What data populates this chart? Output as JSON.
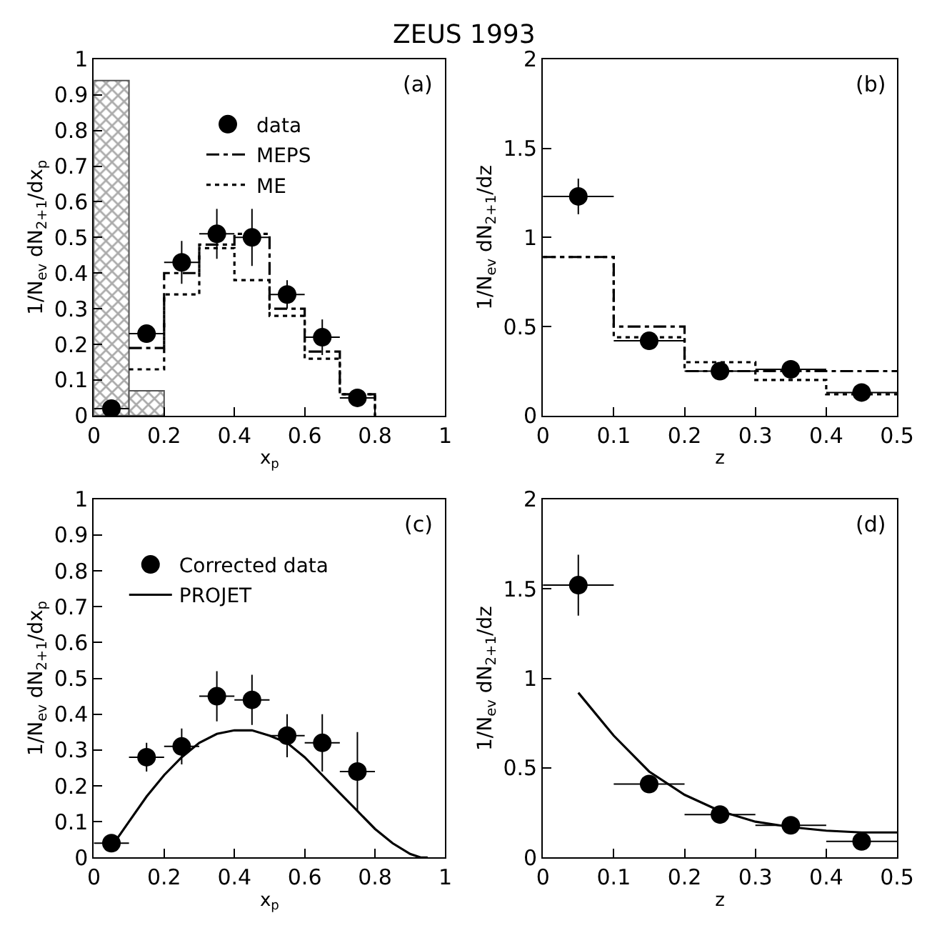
{
  "chart_data": [
    {
      "type": "scatter",
      "title": "ZEUS 1993",
      "xlabel": "x$_{p}$",
      "ylabel": "1/N$_{ev}$ dN$_{2+1}$/dx$_{p}$",
      "annotations": [
        "(a)"
      ],
      "xlim": [
        0,
        1
      ],
      "xticks": [
        0,
        0.2,
        0.4,
        0.6,
        0.8,
        1
      ],
      "ylim": [
        0,
        1
      ],
      "yticks": [
        0,
        0.1,
        0.2,
        0.3,
        0.4,
        0.5,
        0.6,
        0.7,
        0.8,
        0.9,
        1
      ],
      "grid": false,
      "legend": "top",
      "series": [
        {
          "type": "bar",
          "color": "#555555",
          "x": [
            0.05,
            0.15
          ],
          "values": [
            0.94,
            0.07
          ]
        },
        {
          "name": "data",
          "color": "#000000",
          "marker": "circle",
          "x": [
            0.05,
            0.15,
            0.25,
            0.35,
            0.45,
            0.55,
            0.65,
            0.75
          ],
          "values": [
            0.02,
            0.23,
            0.43,
            0.51,
            0.5,
            0.34,
            0.22,
            0.05
          ],
          "errors": [
            0.02,
            0.02,
            0.06,
            0.07,
            0.08,
            0.04,
            0.05,
            0.01
          ],
          "xerrors": [
            0.05,
            0.05,
            0.05,
            0.05,
            0.05,
            0.05,
            0.05,
            0.05
          ]
        },
        {
          "type": "step",
          "name": "MEPS",
          "color": "#000000",
          "line_style": "dashed",
          "x": [
            0.1,
            0.2,
            0.3,
            0.4,
            0.5,
            0.6,
            0.7,
            0.8
          ],
          "values": [
            0.19,
            0.4,
            0.48,
            0.51,
            0.3,
            0.18,
            0.06,
            0
          ]
        },
        {
          "type": "step",
          "name": "ME",
          "color": "#000000",
          "line_style": "dotted",
          "x": [
            0.1,
            0.2,
            0.3,
            0.4,
            0.5,
            0.6,
            0.7,
            0.8
          ],
          "values": [
            0.13,
            0.34,
            0.47,
            0.38,
            0.28,
            0.16,
            0.06,
            0
          ]
        }
      ]
    },
    {
      "type": "scatter",
      "xlabel": "z",
      "ylabel": "1/N$_{ev}$ dN$_{2+1}$/dz",
      "annotations": [
        "(b)"
      ],
      "xlim": [
        0,
        0.5
      ],
      "xticks": [
        0,
        0.1,
        0.2,
        0.3,
        0.4,
        0.5
      ],
      "ylim": [
        0,
        2
      ],
      "yticks": [
        0,
        0.5,
        1,
        1.5,
        2
      ],
      "grid": false,
      "series": [
        {
          "color": "#000000",
          "marker": "circle",
          "x": [
            0.05,
            0.15,
            0.25,
            0.35,
            0.45
          ],
          "values": [
            1.23,
            0.42,
            0.25,
            0.26,
            0.13
          ],
          "errors": [
            0.1,
            0.03,
            0.03,
            0.03,
            0.02
          ],
          "xerrors": [
            0.05,
            0.05,
            0.05,
            0.05,
            0.05
          ]
        },
        {
          "type": "step",
          "color": "#000000",
          "line_style": "dashed",
          "x": [
            0,
            0.1,
            0.2,
            0.3,
            0.4,
            0.5
          ],
          "values": [
            0.89,
            0.5,
            0.25,
            0.25,
            0.25,
            0.25
          ]
        },
        {
          "type": "step",
          "color": "#000000",
          "line_style": "dotted",
          "x": [
            0,
            0.1,
            0.2,
            0.3,
            0.4,
            0.5
          ],
          "values": [
            0.89,
            0.44,
            0.3,
            0.2,
            0.12,
            0.12
          ]
        }
      ]
    },
    {
      "type": "scatter",
      "xlabel": "x$_{p}$",
      "ylabel": "1/N$_{ev}$ dN$_{2+1}$/dx$_{p}$",
      "annotations": [
        "(c)"
      ],
      "xlim": [
        0,
        1
      ],
      "xticks": [
        0,
        0.2,
        0.4,
        0.6,
        0.8,
        1
      ],
      "ylim": [
        0,
        1
      ],
      "yticks": [
        0,
        0.1,
        0.2,
        0.3,
        0.4,
        0.5,
        0.6,
        0.7,
        0.8,
        0.9,
        1
      ],
      "grid": false,
      "legend": "top left",
      "series": [
        {
          "name": "Corrected data",
          "color": "#000000",
          "marker": "circle",
          "x": [
            0.05,
            0.15,
            0.25,
            0.35,
            0.45,
            0.55,
            0.65,
            0.75
          ],
          "values": [
            0.04,
            0.28,
            0.31,
            0.45,
            0.44,
            0.34,
            0.32,
            0.24
          ],
          "errors": [
            0.02,
            0.04,
            0.05,
            0.07,
            0.07,
            0.06,
            0.08,
            0.11
          ],
          "xerrors": [
            0.05,
            0.05,
            0.05,
            0.05,
            0.05,
            0.05,
            0.05,
            0.05
          ]
        },
        {
          "type": "line",
          "name": "PROJET",
          "color": "#000000",
          "line_style": "solid",
          "x": [
            0.05,
            0.1,
            0.15,
            0.2,
            0.25,
            0.3,
            0.35,
            0.4,
            0.45,
            0.5,
            0.55,
            0.6,
            0.65,
            0.7,
            0.75,
            0.8,
            0.85,
            0.9,
            0.93,
            0.95
          ],
          "values": [
            0.03,
            0.1,
            0.17,
            0.23,
            0.28,
            0.32,
            0.345,
            0.355,
            0.355,
            0.34,
            0.32,
            0.28,
            0.23,
            0.18,
            0.13,
            0.08,
            0.04,
            0.01,
            0,
            0
          ]
        }
      ]
    },
    {
      "type": "scatter",
      "xlabel": "z",
      "ylabel": "1/N$_{ev}$ dN$_{2+1}$/dz",
      "annotations": [
        "(d)"
      ],
      "xlim": [
        0,
        0.5
      ],
      "xticks": [
        0,
        0.1,
        0.2,
        0.3,
        0.4,
        0.5
      ],
      "ylim": [
        0,
        2
      ],
      "yticks": [
        0,
        0.5,
        1,
        1.5,
        2
      ],
      "grid": false,
      "series": [
        {
          "color": "#000000",
          "marker": "circle",
          "x": [
            0.05,
            0.15,
            0.25,
            0.35,
            0.45
          ],
          "values": [
            1.52,
            0.41,
            0.24,
            0.18,
            0.09
          ],
          "errors": [
            0.17,
            0.05,
            0.03,
            0.02,
            0.02
          ],
          "xerrors": [
            0.05,
            0.05,
            0.05,
            0.05,
            0.05
          ]
        },
        {
          "type": "line",
          "color": "#000000",
          "line_style": "solid",
          "x": [
            0.05,
            0.1,
            0.15,
            0.2,
            0.25,
            0.3,
            0.35,
            0.4,
            0.45,
            0.5
          ],
          "values": [
            0.92,
            0.68,
            0.48,
            0.35,
            0.26,
            0.2,
            0.17,
            0.15,
            0.14,
            0.14
          ]
        }
      ]
    }
  ]
}
